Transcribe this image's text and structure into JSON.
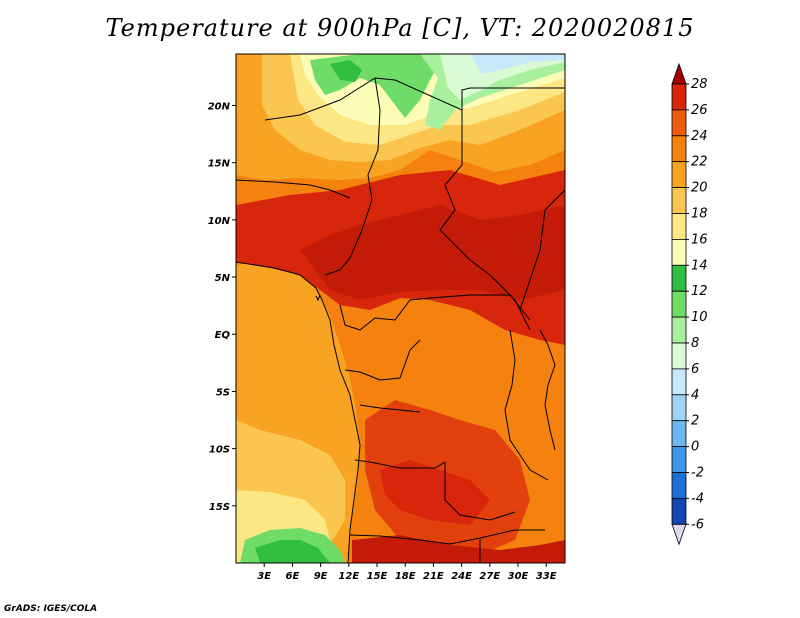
{
  "title": "Temperature at 900hPa [C], VT: 2020020815",
  "footer": "GrADS: IGES/COLA",
  "map": {
    "variable": "Temperature",
    "level_hpa": 900,
    "units": "C",
    "valid_time": "2020020815",
    "lon_range": [
      0,
      35
    ],
    "lat_range": [
      -20,
      24.5
    ],
    "lat_ticks": [
      {
        "value": 20,
        "label": "20N"
      },
      {
        "value": 15,
        "label": "15N"
      },
      {
        "value": 10,
        "label": "10N"
      },
      {
        "value": 5,
        "label": "5N"
      },
      {
        "value": 0,
        "label": "EQ"
      },
      {
        "value": -5,
        "label": "5S"
      },
      {
        "value": -10,
        "label": "10S"
      },
      {
        "value": -15,
        "label": "15S"
      }
    ],
    "lon_ticks": [
      {
        "value": 3,
        "label": "3E"
      },
      {
        "value": 6,
        "label": "6E"
      },
      {
        "value": 9,
        "label": "9E"
      },
      {
        "value": 12,
        "label": "12E"
      },
      {
        "value": 15,
        "label": "15E"
      },
      {
        "value": 18,
        "label": "18E"
      },
      {
        "value": 21,
        "label": "21E"
      },
      {
        "value": 24,
        "label": "24E"
      },
      {
        "value": 27,
        "label": "27E"
      },
      {
        "value": 30,
        "label": "30E"
      },
      {
        "value": 33,
        "label": "33E"
      }
    ]
  },
  "colorbar": {
    "levels": [
      "28",
      "26",
      "24",
      "22",
      "20",
      "18",
      "16",
      "14",
      "12",
      "10",
      "8",
      "6",
      "4",
      "2",
      "0",
      "-2",
      "-4",
      "-6"
    ],
    "colors": [
      "#a50000",
      "#d7260b",
      "#f05a0e",
      "#f5820f",
      "#f8a322",
      "#fac650",
      "#fde784",
      "#fefdb8",
      "#2fbe3f",
      "#6fdc68",
      "#a9f09e",
      "#d9fad2",
      "#c7e9fb",
      "#9ed4f7",
      "#6fb7f0",
      "#3f95e8",
      "#1f6fd8",
      "#1346b5",
      "#0a1f86",
      "#ded9f2"
    ]
  }
}
